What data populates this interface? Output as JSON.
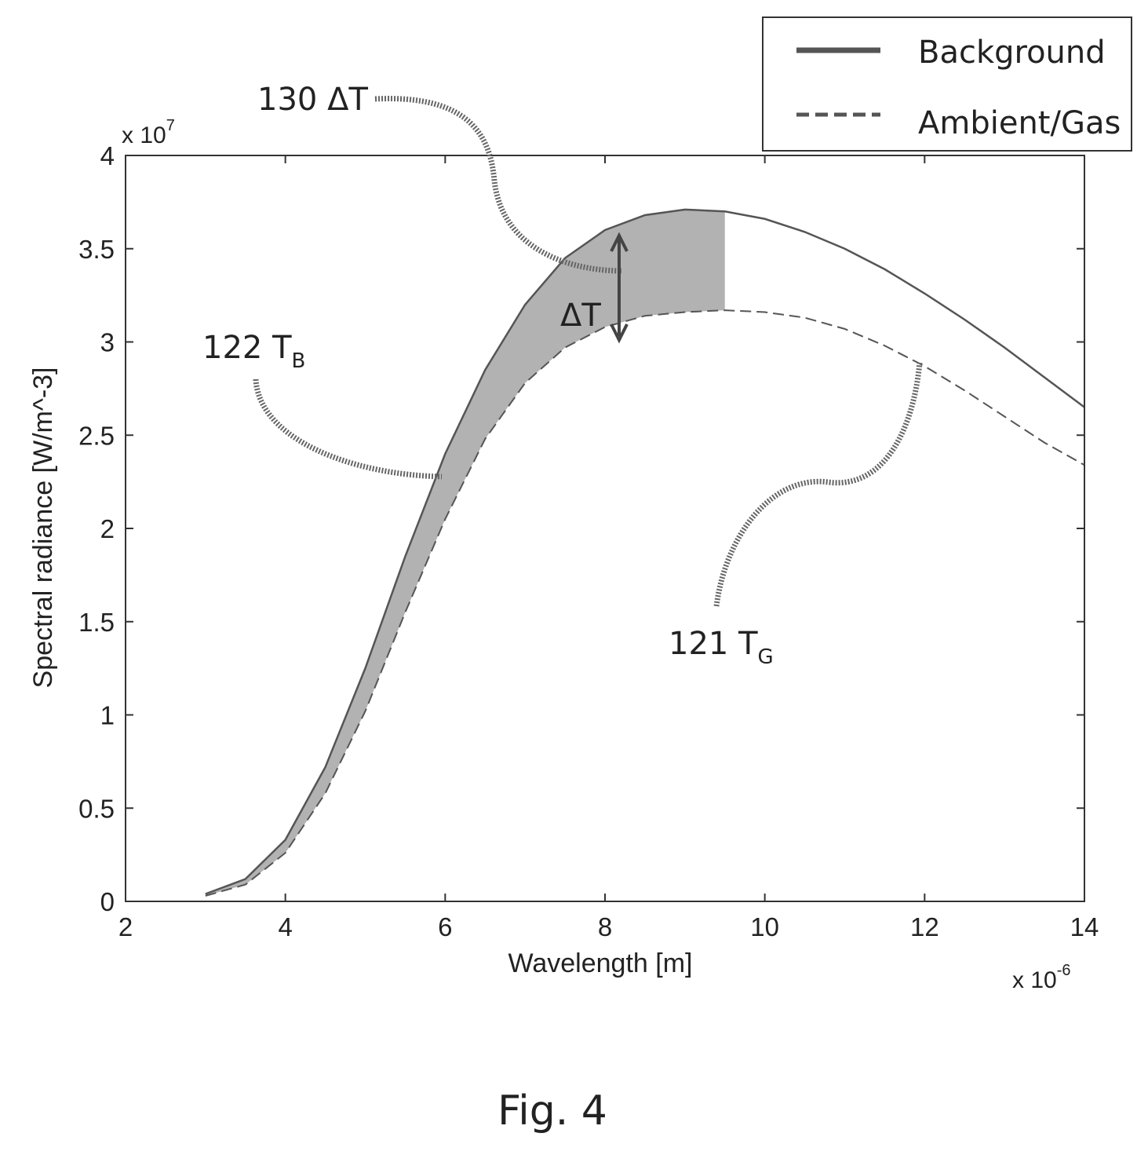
{
  "chart_data": {
    "type": "line",
    "title": "",
    "xlabel": "Wavelength [m]",
    "ylabel": "Spectral radiance [W/m^-3]",
    "x_exponent": "x 10",
    "x_exponent_power": "-6",
    "y_exponent": "x 10",
    "y_exponent_power": "7",
    "xlim": [
      2,
      14
    ],
    "ylim": [
      0,
      4
    ],
    "xticks": [
      2,
      4,
      6,
      8,
      10,
      12,
      14
    ],
    "xtick_labels": [
      "2",
      "4",
      "6",
      "8",
      "10",
      "12",
      "14"
    ],
    "yticks": [
      0,
      0.5,
      1,
      1.5,
      2,
      2.5,
      3,
      3.5,
      4
    ],
    "ytick_labels": [
      "0",
      "0.5",
      "1",
      "1.5",
      "2",
      "2.5",
      "3",
      "3.5",
      "4"
    ],
    "grid": false,
    "legend_position": "top-right",
    "series": [
      {
        "name": "Background",
        "style": "solid",
        "x": [
          3.0,
          3.5,
          4.0,
          4.5,
          5.0,
          5.5,
          6.0,
          6.5,
          7.0,
          7.5,
          8.0,
          8.5,
          9.0,
          9.5,
          10.0,
          10.5,
          11.0,
          11.5,
          12.0,
          12.5,
          13.0,
          13.5,
          14.0
        ],
        "values": [
          0.04,
          0.12,
          0.33,
          0.72,
          1.25,
          1.85,
          2.4,
          2.85,
          3.2,
          3.45,
          3.6,
          3.68,
          3.71,
          3.7,
          3.66,
          3.59,
          3.5,
          3.39,
          3.26,
          3.12,
          2.97,
          2.81,
          2.65
        ]
      },
      {
        "name": "Ambient/Gas",
        "style": "dashed",
        "x": [
          3.0,
          3.5,
          4.0,
          4.5,
          5.0,
          5.5,
          6.0,
          6.5,
          7.0,
          7.5,
          8.0,
          8.5,
          9.0,
          9.5,
          10.0,
          10.5,
          11.0,
          11.5,
          12.0,
          12.5,
          13.0,
          13.5,
          14.0
        ],
        "values": [
          0.03,
          0.09,
          0.26,
          0.58,
          1.02,
          1.55,
          2.05,
          2.48,
          2.78,
          2.97,
          3.08,
          3.14,
          3.16,
          3.17,
          3.16,
          3.13,
          3.07,
          2.98,
          2.87,
          2.74,
          2.6,
          2.46,
          2.34
        ]
      }
    ],
    "annotations": [
      {
        "number": "130",
        "text": "ΔT"
      },
      {
        "number": "122",
        "text": "T",
        "sub": "B"
      },
      {
        "number": "121",
        "text": "T",
        "sub": "G"
      },
      {
        "text": "ΔT"
      }
    ]
  },
  "caption": "Fig. 4"
}
